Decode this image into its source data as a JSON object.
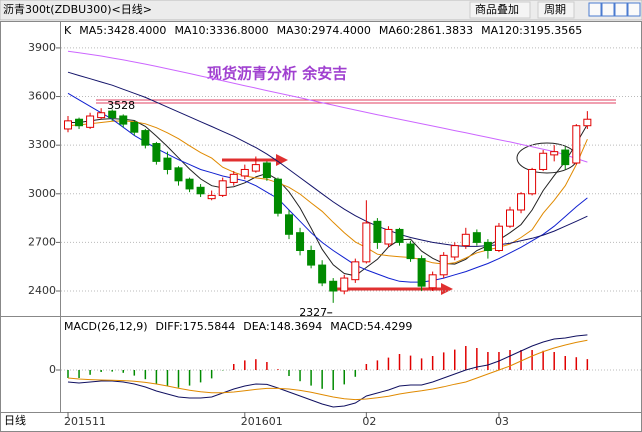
{
  "window_title": "沥青300t(ZDBU300)<日线>",
  "toolbar": [
    "商品叠加",
    "周期"
  ],
  "period_label": "日线",
  "chart_data": [
    {
      "type": "candlestick",
      "pane_label": "K",
      "annotation": "现货沥青分析  余安吉",
      "high_mark": 3528,
      "low_mark": 2327,
      "categories": [
        "201511",
        null,
        null,
        null,
        null,
        null,
        null,
        null,
        null,
        null,
        null,
        null,
        null,
        null,
        null,
        null,
        "201601",
        null,
        null,
        null,
        null,
        null,
        null,
        null,
        null,
        null,
        null,
        "02",
        null,
        null,
        null,
        null,
        null,
        null,
        null,
        null,
        null,
        null,
        null,
        "03",
        null,
        null,
        null,
        null,
        null,
        null,
        null,
        null
      ],
      "open": [
        3400,
        3460,
        3410,
        3470,
        3510,
        3480,
        3440,
        3390,
        3310,
        3220,
        3160,
        3090,
        3040,
        2970,
        2990,
        3070,
        3110,
        3140,
        3190,
        3090,
        2870,
        2760,
        2650,
        2560,
        2460,
        2400,
        2470,
        2580,
        2830,
        2690,
        2780,
        2690,
        2600,
        2420,
        2500,
        2610,
        2680,
        2760,
        2700,
        2650,
        2800,
        2900,
        3000,
        3150,
        3240,
        3270,
        3190,
        3420
      ],
      "high": [
        3480,
        3470,
        3500,
        3528,
        3520,
        3490,
        3450,
        3400,
        3320,
        3260,
        3170,
        3100,
        3060,
        3020,
        3100,
        3140,
        3180,
        3230,
        3200,
        3100,
        2900,
        2790,
        2680,
        2590,
        2480,
        2500,
        2600,
        2960,
        2850,
        2800,
        2790,
        2710,
        2620,
        2520,
        2640,
        2700,
        2790,
        2780,
        2720,
        2820,
        2920,
        3010,
        3160,
        3270,
        3300,
        3290,
        3430,
        3510
      ],
      "low": [
        3380,
        3400,
        3400,
        3460,
        3450,
        3410,
        3360,
        3280,
        3180,
        3120,
        3050,
        3010,
        2980,
        2960,
        2980,
        3050,
        3090,
        3130,
        3080,
        2860,
        2720,
        2620,
        2540,
        2430,
        2327,
        2380,
        2450,
        2570,
        2660,
        2670,
        2680,
        2580,
        2400,
        2400,
        2480,
        2590,
        2660,
        2680,
        2600,
        2640,
        2790,
        2880,
        2990,
        3140,
        3200,
        3150,
        3180,
        3400
      ],
      "close": [
        3450,
        3420,
        3480,
        3500,
        3470,
        3430,
        3380,
        3300,
        3200,
        3150,
        3080,
        3030,
        3000,
        2990,
        3080,
        3120,
        3150,
        3180,
        3100,
        2880,
        2750,
        2650,
        2560,
        2450,
        2400,
        2480,
        2580,
        2820,
        2700,
        2780,
        2700,
        2600,
        2430,
        2500,
        2620,
        2680,
        2750,
        2700,
        2650,
        2800,
        2900,
        3000,
        3150,
        3250,
        3260,
        3180,
        3420,
        3460
      ],
      "up_color": "#e00000",
      "down_color": "#008a00",
      "series": [
        {
          "name": "MA5:3428.4000",
          "color": "#222222",
          "values": [
            3440,
            3440,
            3450,
            3460,
            3464,
            3460,
            3452,
            3416,
            3356,
            3292,
            3222,
            3152,
            3092,
            3050,
            3036,
            3044,
            3068,
            3104,
            3126,
            3086,
            3012,
            2912,
            2788,
            2658,
            2562,
            2508,
            2494,
            2546,
            2596,
            2672,
            2716,
            2720,
            2646,
            2602,
            2570,
            2566,
            2596,
            2650,
            2680,
            2716,
            2760,
            2810,
            2900,
            3020,
            3112,
            3200,
            3310,
            3428.4
          ]
        },
        {
          "name": "MA10:3336.8000",
          "color": "#e08a00",
          "values": [
            3420,
            3425,
            3432,
            3440,
            3448,
            3450,
            3445,
            3432,
            3408,
            3376,
            3340,
            3296,
            3254,
            3220,
            3164,
            3133,
            3110,
            3098,
            3090,
            3068,
            3040,
            2998,
            2944,
            2892,
            2824,
            2760,
            2703,
            2667,
            2627,
            2617,
            2612,
            2607,
            2594,
            2574,
            2566,
            2574,
            2604,
            2636,
            2654,
            2670,
            2690,
            2730,
            2778,
            2880,
            2960,
            3050,
            3180,
            3336.8
          ]
        },
        {
          "name": "MA30:2974.4000",
          "color": "#1020d0",
          "values": [
            3620,
            3580,
            3540,
            3500,
            3460,
            3410,
            3360,
            3320,
            3280,
            3245,
            3210,
            3180,
            3150,
            3130,
            3110,
            3095,
            3080,
            3050,
            3010,
            2970,
            2900,
            2830,
            2760,
            2700,
            2650,
            2605,
            2560,
            2530,
            2505,
            2480,
            2460,
            2455,
            2455,
            2465,
            2480,
            2500,
            2520,
            2545,
            2570,
            2600,
            2635,
            2670,
            2710,
            2750,
            2800,
            2860,
            2920,
            2974.4
          ]
        },
        {
          "name": "MA60:2861.3833",
          "color": "#14146a",
          "values": [
            3750,
            3730,
            3710,
            3690,
            3670,
            3645,
            3620,
            3595,
            3565,
            3535,
            3505,
            3475,
            3445,
            3415,
            3385,
            3355,
            3320,
            3285,
            3245,
            3200,
            3150,
            3100,
            3050,
            3000,
            2950,
            2905,
            2865,
            2830,
            2800,
            2775,
            2750,
            2730,
            2715,
            2700,
            2690,
            2680,
            2675,
            2675,
            2680,
            2685,
            2695,
            2710,
            2725,
            2745,
            2770,
            2800,
            2830,
            2861.3833
          ]
        },
        {
          "name": "MA120:3195.3565",
          "color": "#cc66ff",
          "values": [
            3880,
            3870,
            3860,
            3850,
            3838,
            3826,
            3813,
            3800,
            3786,
            3772,
            3757,
            3742,
            3727,
            3712,
            3697,
            3682,
            3667,
            3652,
            3637,
            3622,
            3607,
            3592,
            3577,
            3562,
            3547,
            3532,
            3517,
            3502,
            3488,
            3474,
            3460,
            3446,
            3432,
            3418,
            3404,
            3390,
            3376,
            3362,
            3348,
            3334,
            3320,
            3305,
            3290,
            3275,
            3260,
            3240,
            3218,
            3195.3565
          ]
        }
      ],
      "ylim": [
        2252,
        4060
      ],
      "yticks": [
        2400,
        2700,
        3000,
        3300,
        3600,
        3900
      ],
      "grid": true
    },
    {
      "type": "macd",
      "title": "MACD(26,12,9)",
      "series": [
        {
          "name": "DIFF:175.5844",
          "color": "#101060",
          "values": [
            -60,
            -65,
            -60,
            -55,
            -55,
            -60,
            -70,
            -85,
            -105,
            -120,
            -135,
            -140,
            -140,
            -135,
            -115,
            -95,
            -80,
            -70,
            -72,
            -90,
            -110,
            -130,
            -150,
            -170,
            -185,
            -180,
            -165,
            -130,
            -115,
            -100,
            -80,
            -75,
            -75,
            -60,
            -40,
            -20,
            0,
            15,
            25,
            45,
            70,
            95,
            120,
            140,
            155,
            160,
            170,
            175.5844
          ]
        },
        {
          "name": "DEA:148.3694",
          "color": "#e08a00",
          "values": [
            -40,
            -45,
            -48,
            -50,
            -51,
            -53,
            -56,
            -62,
            -70,
            -80,
            -91,
            -101,
            -109,
            -114,
            -114,
            -110,
            -104,
            -97,
            -92,
            -92,
            -95,
            -102,
            -111,
            -123,
            -135,
            -144,
            -148,
            -145,
            -139,
            -131,
            -120,
            -111,
            -104,
            -95,
            -84,
            -71,
            -60,
            -40,
            -20,
            0,
            20,
            45,
            70,
            92,
            110,
            125,
            138,
            148.3694
          ]
        }
      ],
      "histogram": {
        "name": "MACD:54.4299",
        "up_color": "#e00000",
        "down_color": "#008a00",
        "values": [
          -40,
          -40,
          -24,
          -10,
          -8,
          -14,
          -28,
          -46,
          -70,
          -80,
          -88,
          -78,
          -62,
          -42,
          -2,
          30,
          48,
          54,
          40,
          4,
          -30,
          -56,
          -78,
          -94,
          -100,
          -72,
          -34,
          30,
          48,
          62,
          80,
          72,
          58,
          70,
          88,
          102,
          120,
          110,
          90,
          90,
          100,
          100,
          100,
          96,
          90,
          70,
          64,
          54.4299
        ]
      },
      "ylim": [
        -210,
        260
      ],
      "yticks": [
        0
      ],
      "grid": true
    }
  ]
}
